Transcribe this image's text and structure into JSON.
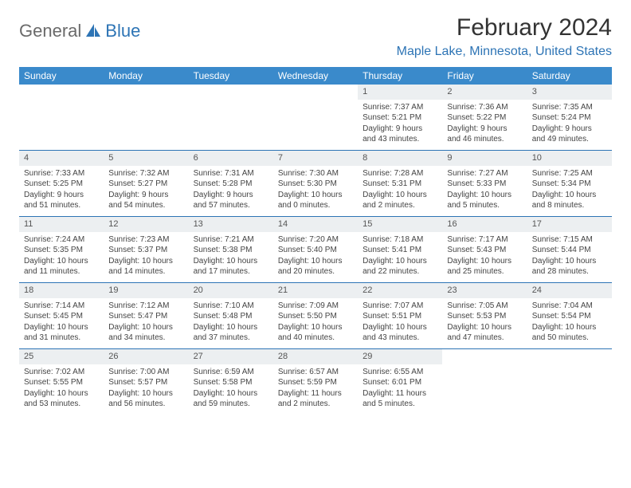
{
  "logo": {
    "text1": "General",
    "text2": "Blue"
  },
  "title": "February 2024",
  "location": "Maple Lake, Minnesota, United States",
  "colors": {
    "header_bar": "#3a8acb",
    "accent": "#2d74b5",
    "daynum_bg": "#eceff1",
    "logo_gray": "#6a6a6a"
  },
  "weekdays": [
    "Sunday",
    "Monday",
    "Tuesday",
    "Wednesday",
    "Thursday",
    "Friday",
    "Saturday"
  ],
  "weeks": [
    [
      null,
      null,
      null,
      null,
      {
        "n": "1",
        "sr": "Sunrise: 7:37 AM",
        "ss": "Sunset: 5:21 PM",
        "dl1": "Daylight: 9 hours",
        "dl2": "and 43 minutes."
      },
      {
        "n": "2",
        "sr": "Sunrise: 7:36 AM",
        "ss": "Sunset: 5:22 PM",
        "dl1": "Daylight: 9 hours",
        "dl2": "and 46 minutes."
      },
      {
        "n": "3",
        "sr": "Sunrise: 7:35 AM",
        "ss": "Sunset: 5:24 PM",
        "dl1": "Daylight: 9 hours",
        "dl2": "and 49 minutes."
      }
    ],
    [
      {
        "n": "4",
        "sr": "Sunrise: 7:33 AM",
        "ss": "Sunset: 5:25 PM",
        "dl1": "Daylight: 9 hours",
        "dl2": "and 51 minutes."
      },
      {
        "n": "5",
        "sr": "Sunrise: 7:32 AM",
        "ss": "Sunset: 5:27 PM",
        "dl1": "Daylight: 9 hours",
        "dl2": "and 54 minutes."
      },
      {
        "n": "6",
        "sr": "Sunrise: 7:31 AM",
        "ss": "Sunset: 5:28 PM",
        "dl1": "Daylight: 9 hours",
        "dl2": "and 57 minutes."
      },
      {
        "n": "7",
        "sr": "Sunrise: 7:30 AM",
        "ss": "Sunset: 5:30 PM",
        "dl1": "Daylight: 10 hours",
        "dl2": "and 0 minutes."
      },
      {
        "n": "8",
        "sr": "Sunrise: 7:28 AM",
        "ss": "Sunset: 5:31 PM",
        "dl1": "Daylight: 10 hours",
        "dl2": "and 2 minutes."
      },
      {
        "n": "9",
        "sr": "Sunrise: 7:27 AM",
        "ss": "Sunset: 5:33 PM",
        "dl1": "Daylight: 10 hours",
        "dl2": "and 5 minutes."
      },
      {
        "n": "10",
        "sr": "Sunrise: 7:25 AM",
        "ss": "Sunset: 5:34 PM",
        "dl1": "Daylight: 10 hours",
        "dl2": "and 8 minutes."
      }
    ],
    [
      {
        "n": "11",
        "sr": "Sunrise: 7:24 AM",
        "ss": "Sunset: 5:35 PM",
        "dl1": "Daylight: 10 hours",
        "dl2": "and 11 minutes."
      },
      {
        "n": "12",
        "sr": "Sunrise: 7:23 AM",
        "ss": "Sunset: 5:37 PM",
        "dl1": "Daylight: 10 hours",
        "dl2": "and 14 minutes."
      },
      {
        "n": "13",
        "sr": "Sunrise: 7:21 AM",
        "ss": "Sunset: 5:38 PM",
        "dl1": "Daylight: 10 hours",
        "dl2": "and 17 minutes."
      },
      {
        "n": "14",
        "sr": "Sunrise: 7:20 AM",
        "ss": "Sunset: 5:40 PM",
        "dl1": "Daylight: 10 hours",
        "dl2": "and 20 minutes."
      },
      {
        "n": "15",
        "sr": "Sunrise: 7:18 AM",
        "ss": "Sunset: 5:41 PM",
        "dl1": "Daylight: 10 hours",
        "dl2": "and 22 minutes."
      },
      {
        "n": "16",
        "sr": "Sunrise: 7:17 AM",
        "ss": "Sunset: 5:43 PM",
        "dl1": "Daylight: 10 hours",
        "dl2": "and 25 minutes."
      },
      {
        "n": "17",
        "sr": "Sunrise: 7:15 AM",
        "ss": "Sunset: 5:44 PM",
        "dl1": "Daylight: 10 hours",
        "dl2": "and 28 minutes."
      }
    ],
    [
      {
        "n": "18",
        "sr": "Sunrise: 7:14 AM",
        "ss": "Sunset: 5:45 PM",
        "dl1": "Daylight: 10 hours",
        "dl2": "and 31 minutes."
      },
      {
        "n": "19",
        "sr": "Sunrise: 7:12 AM",
        "ss": "Sunset: 5:47 PM",
        "dl1": "Daylight: 10 hours",
        "dl2": "and 34 minutes."
      },
      {
        "n": "20",
        "sr": "Sunrise: 7:10 AM",
        "ss": "Sunset: 5:48 PM",
        "dl1": "Daylight: 10 hours",
        "dl2": "and 37 minutes."
      },
      {
        "n": "21",
        "sr": "Sunrise: 7:09 AM",
        "ss": "Sunset: 5:50 PM",
        "dl1": "Daylight: 10 hours",
        "dl2": "and 40 minutes."
      },
      {
        "n": "22",
        "sr": "Sunrise: 7:07 AM",
        "ss": "Sunset: 5:51 PM",
        "dl1": "Daylight: 10 hours",
        "dl2": "and 43 minutes."
      },
      {
        "n": "23",
        "sr": "Sunrise: 7:05 AM",
        "ss": "Sunset: 5:53 PM",
        "dl1": "Daylight: 10 hours",
        "dl2": "and 47 minutes."
      },
      {
        "n": "24",
        "sr": "Sunrise: 7:04 AM",
        "ss": "Sunset: 5:54 PM",
        "dl1": "Daylight: 10 hours",
        "dl2": "and 50 minutes."
      }
    ],
    [
      {
        "n": "25",
        "sr": "Sunrise: 7:02 AM",
        "ss": "Sunset: 5:55 PM",
        "dl1": "Daylight: 10 hours",
        "dl2": "and 53 minutes."
      },
      {
        "n": "26",
        "sr": "Sunrise: 7:00 AM",
        "ss": "Sunset: 5:57 PM",
        "dl1": "Daylight: 10 hours",
        "dl2": "and 56 minutes."
      },
      {
        "n": "27",
        "sr": "Sunrise: 6:59 AM",
        "ss": "Sunset: 5:58 PM",
        "dl1": "Daylight: 10 hours",
        "dl2": "and 59 minutes."
      },
      {
        "n": "28",
        "sr": "Sunrise: 6:57 AM",
        "ss": "Sunset: 5:59 PM",
        "dl1": "Daylight: 11 hours",
        "dl2": "and 2 minutes."
      },
      {
        "n": "29",
        "sr": "Sunrise: 6:55 AM",
        "ss": "Sunset: 6:01 PM",
        "dl1": "Daylight: 11 hours",
        "dl2": "and 5 minutes."
      },
      null,
      null
    ]
  ]
}
